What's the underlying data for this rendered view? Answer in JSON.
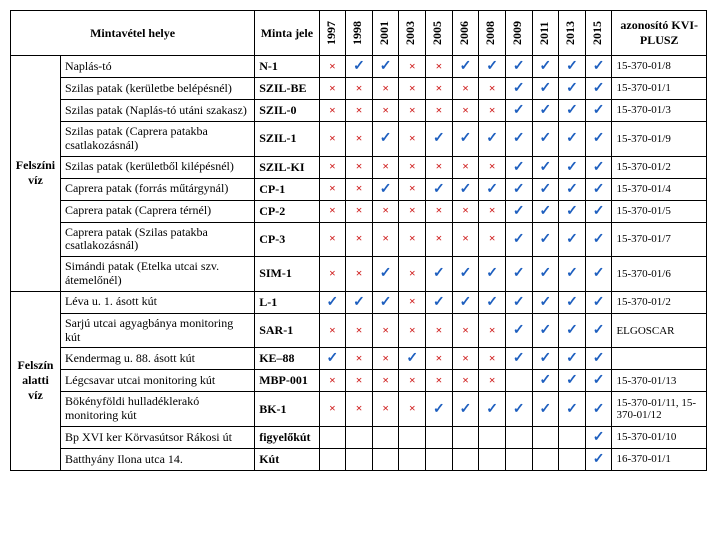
{
  "headers": {
    "location": "Mintavétel helye",
    "code": "Minta jele",
    "id": "azonosító KVI-PLUSZ"
  },
  "years": [
    "1997",
    "1998",
    "2001",
    "2003",
    "2005",
    "2006",
    "2008",
    "2009",
    "2011",
    "2013",
    "2015"
  ],
  "colors": {
    "check": "#1e5fbf",
    "cross": "#d02020",
    "border": "#000000",
    "background": "#ffffff"
  },
  "glyphs": {
    "check": "✓",
    "cross": "×",
    "blank": ""
  },
  "categories": [
    {
      "name": "Felszíni víz",
      "rows": [
        {
          "loc": "Naplás-tó",
          "code": "N-1",
          "id": "15-370-01/8",
          "marks": [
            "x",
            "c",
            "c",
            "x",
            "x",
            "c",
            "c",
            "c",
            "c",
            "c",
            "c"
          ]
        },
        {
          "loc": "Szilas patak (kerületbe belépésnél)",
          "code": "SZIL-BE",
          "id": "15-370-01/1",
          "marks": [
            "x",
            "x",
            "x",
            "x",
            "x",
            "x",
            "x",
            "c",
            "c",
            "c",
            "c"
          ]
        },
        {
          "loc": "Szilas patak (Naplás-tó utáni szakasz)",
          "code": "SZIL-0",
          "id": "15-370-01/3",
          "marks": [
            "x",
            "x",
            "x",
            "x",
            "x",
            "x",
            "x",
            "c",
            "c",
            "c",
            "c"
          ]
        },
        {
          "loc": "Szilas patak (Caprera patakba csatlakozásnál)",
          "code": "SZIL-1",
          "id": "15-370-01/9",
          "marks": [
            "x",
            "x",
            "c",
            "x",
            "c",
            "c",
            "c",
            "c",
            "c",
            "c",
            "c"
          ]
        },
        {
          "loc": "Szilas patak (kerületből kilépésnél)",
          "code": "SZIL-KI",
          "id": "15-370-01/2",
          "marks": [
            "x",
            "x",
            "x",
            "x",
            "x",
            "x",
            "x",
            "c",
            "c",
            "c",
            "c"
          ]
        },
        {
          "loc": "Caprera patak (forrás műtárgynál)",
          "code": "CP-1",
          "id": "15-370-01/4",
          "marks": [
            "x",
            "x",
            "c",
            "x",
            "c",
            "c",
            "c",
            "c",
            "c",
            "c",
            "c"
          ]
        },
        {
          "loc": "Caprera patak (Caprera térnél)",
          "code": "CP-2",
          "id": "15-370-01/5",
          "marks": [
            "x",
            "x",
            "x",
            "x",
            "x",
            "x",
            "x",
            "c",
            "c",
            "c",
            "c"
          ]
        },
        {
          "loc": "Caprera patak (Szilas patakba csatlakozásnál)",
          "code": "CP-3",
          "id": "15-370-01/7",
          "marks": [
            "x",
            "x",
            "x",
            "x",
            "x",
            "x",
            "x",
            "c",
            "c",
            "c",
            "c"
          ]
        },
        {
          "loc": "Simándi patak (Etelka utcai szv. átemelőnél)",
          "code": "SIM-1",
          "id": "15-370-01/6",
          "marks": [
            "x",
            "x",
            "c",
            "x",
            "c",
            "c",
            "c",
            "c",
            "c",
            "c",
            "c"
          ]
        }
      ]
    },
    {
      "name": "Felszín alatti víz",
      "rows": [
        {
          "loc": "Léva u. 1. ásott kút",
          "code": "L-1",
          "id": "15-370-01/2",
          "marks": [
            "c",
            "c",
            "c",
            "x",
            "c",
            "c",
            "c",
            "c",
            "c",
            "c",
            "c"
          ]
        },
        {
          "loc": "Sarjú utcai agyagbánya monitoring kút",
          "code": "SAR-1",
          "id": "ELGOSCAR",
          "marks": [
            "x",
            "x",
            "x",
            "x",
            "x",
            "x",
            "x",
            "c",
            "c",
            "c",
            "c"
          ]
        },
        {
          "loc": "Kendermag u. 88. ásott kút",
          "code": "KE–88",
          "id": "",
          "marks": [
            "c",
            "x",
            "x",
            "c",
            "x",
            "x",
            "x",
            "c",
            "c",
            "c",
            "c"
          ]
        },
        {
          "loc": "Légcsavar utcai monitoring kút",
          "code": "MBP-001",
          "id": "15-370-01/13",
          "marks": [
            "x",
            "x",
            "x",
            "x",
            "x",
            "x",
            "x",
            "",
            "c",
            "c",
            "c"
          ]
        },
        {
          "loc": "Bökényföldi hulladéklerakó monitoring kút",
          "code": "BK-1",
          "id": "15-370-01/11, 15-370-01/12",
          "marks": [
            "x",
            "x",
            "x",
            "x",
            "c",
            "c",
            "c",
            "c",
            "c",
            "c",
            "c"
          ]
        },
        {
          "loc": "Bp XVI ker Körvasútsor Rákosi út",
          "code": "figyelőkút",
          "id": "15-370-01/10",
          "marks": [
            "",
            "",
            "",
            "",
            "",
            "",
            "",
            "",
            "",
            "",
            "c"
          ]
        },
        {
          "loc": "Batthyány Ilona utca 14.",
          "code": "Kút",
          "id": "16-370-01/1",
          "marks": [
            "",
            "",
            "",
            "",
            "",
            "",
            "",
            "",
            "",
            "",
            "c"
          ]
        }
      ]
    }
  ]
}
